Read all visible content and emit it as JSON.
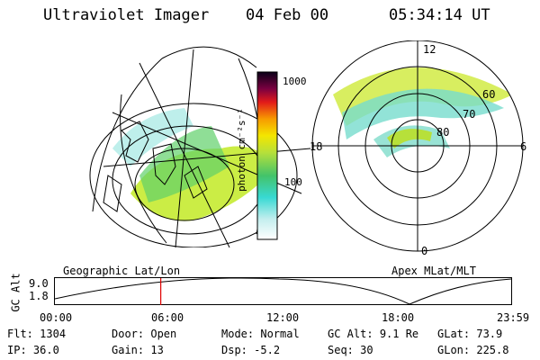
{
  "header": {
    "instrument": "Ultraviolet Imager",
    "date": "04 Feb 00",
    "time": "05:34:14 UT"
  },
  "colorbar": {
    "label": "photon cm⁻²s⁻¹",
    "ticks": [
      "1000",
      "100"
    ]
  },
  "left_panel": {
    "caption": "Geographic Lat/Lon"
  },
  "right_panel": {
    "caption": "Apex MLat/MLT",
    "mlt_labels": {
      "top": "12",
      "left": "18",
      "right": "6",
      "bottom": "0"
    },
    "lat_labels": [
      "60",
      "70",
      "80"
    ]
  },
  "timeline": {
    "axis_label": "GC Alt",
    "y_ticks": [
      "9.0",
      "1.8"
    ],
    "x_ticks": [
      "00:00",
      "06:00",
      "12:00",
      "18:00",
      "23:59"
    ],
    "current_time_fraction": 0.232
  },
  "status": {
    "flt": {
      "label": "Flt:",
      "value": "1304"
    },
    "ip": {
      "label": "IP:",
      "value": "36.0"
    },
    "door": {
      "label": "Door:",
      "value": "Open"
    },
    "gain": {
      "label": "Gain:",
      "value": "13"
    },
    "mode": {
      "label": "Mode:",
      "value": "Normal"
    },
    "dsp": {
      "label": "Dsp:",
      "value": "-5.2"
    },
    "gcalt": {
      "label": "GC Alt:",
      "value": "9.1 Re"
    },
    "seq": {
      "label": "Seq:",
      "value": "30"
    },
    "glat": {
      "label": "GLat:",
      "value": "73.9"
    },
    "glon": {
      "label": "GLon:",
      "value": "225.8"
    }
  },
  "colors": {
    "marker": "#e00000",
    "accent": "#000000"
  }
}
